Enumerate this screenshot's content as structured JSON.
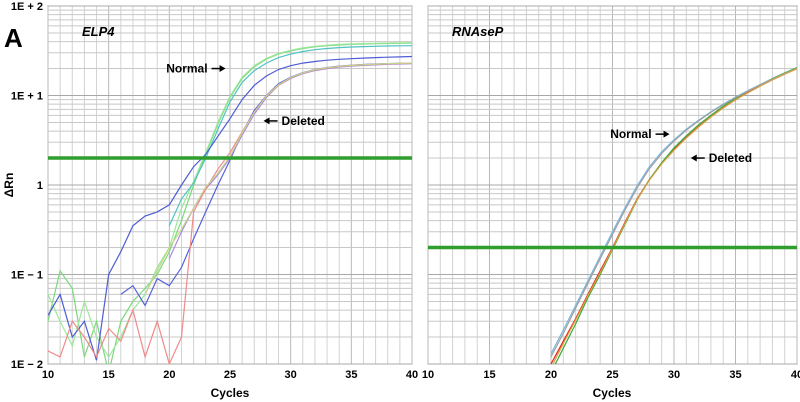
{
  "figure_label": "A",
  "chart_data": [
    {
      "type": "line",
      "title": "ELP4",
      "xlabel": "Cycles",
      "ylabel": "ΔRn",
      "yscale": "log",
      "xlim": [
        10,
        40
      ],
      "ylim": [
        0.01,
        100
      ],
      "x_ticks": [
        10,
        15,
        20,
        25,
        30,
        35,
        40
      ],
      "y_ticks": [
        {
          "value": 0.01,
          "label": "1E − 2"
        },
        {
          "value": 0.1,
          "label": "1E − 1"
        },
        {
          "value": 1,
          "label": "1"
        },
        {
          "value": 10,
          "label": "1E + 1"
        },
        {
          "value": 100,
          "label": "1E + 2"
        }
      ],
      "grid": true,
      "threshold": 2.0,
      "threshold_color": "#2e9e2e",
      "annotations": [
        {
          "text": "Normal",
          "x": 24.8,
          "y": 20
        },
        {
          "text": "Deleted",
          "x": 27.6,
          "y": 5.2
        }
      ],
      "series": [
        {
          "color": "#7bd87b",
          "x": [
            10,
            11,
            12,
            13,
            14,
            15,
            16,
            17,
            18,
            19,
            20,
            21,
            22,
            23,
            24,
            25,
            26,
            27,
            28,
            29,
            30,
            31,
            32,
            33,
            34,
            35,
            36,
            37,
            38,
            39,
            40
          ],
          "y": [
            0.03,
            0.11,
            0.07,
            0.012,
            0.03,
            0.008,
            0.03,
            0.05,
            0.07,
            0.1,
            0.18,
            0.4,
            1.0,
            2.2,
            4.8,
            9.5,
            15.5,
            21,
            25.5,
            29,
            31.5,
            33.5,
            35,
            36,
            36.7,
            37.2,
            37.6,
            37.9,
            38.1,
            38.3,
            38.5
          ]
        },
        {
          "color": "#9be89b",
          "x": [
            10,
            11,
            12,
            13,
            14,
            15,
            16,
            17,
            18,
            19,
            20,
            21,
            22,
            23,
            24,
            25,
            26,
            27,
            28,
            29,
            30,
            31,
            32,
            33,
            34,
            35,
            36,
            37,
            38,
            39,
            40
          ],
          "y": [
            0.06,
            0.03,
            0.016,
            0.05,
            0.02,
            0.012,
            0.02,
            0.04,
            0.06,
            0.12,
            0.2,
            0.55,
            1.1,
            2.3,
            5.0,
            9.8,
            16,
            21.5,
            26,
            29.5,
            32,
            34,
            35.5,
            36.5,
            37.2,
            37.6,
            38,
            38.3,
            38.5,
            38.7,
            38.9
          ]
        },
        {
          "color": "#4fc2c2",
          "x": [
            20,
            21,
            22,
            23,
            24,
            25,
            26,
            27,
            28,
            29,
            30,
            31,
            32,
            33,
            34,
            35,
            36,
            37,
            38,
            39,
            40
          ],
          "y": [
            0.35,
            0.7,
            1.05,
            2.0,
            4.2,
            8.5,
            14,
            19,
            23,
            26.5,
            29,
            31,
            32.5,
            33.5,
            34.3,
            34.8,
            35.2,
            35.5,
            35.7,
            35.9,
            36.0
          ]
        },
        {
          "color": "#4e5cd6",
          "x": [
            10,
            11,
            12,
            13,
            14,
            15,
            16,
            17,
            18,
            19,
            20,
            21,
            22,
            23,
            24,
            25,
            26,
            27,
            28,
            29,
            30,
            31,
            32,
            33,
            34,
            35,
            36,
            37,
            38,
            39,
            40
          ],
          "y": [
            0.035,
            0.06,
            0.02,
            0.03,
            0.011,
            0.1,
            0.18,
            0.35,
            0.45,
            0.5,
            0.6,
            1.0,
            1.6,
            2.2,
            3.5,
            5.5,
            9.0,
            13,
            16.5,
            19.5,
            21.5,
            23,
            24,
            24.8,
            25.4,
            25.8,
            26.2,
            26.5,
            26.8,
            27.0,
            27.3
          ]
        },
        {
          "color": "#5661d9",
          "x": [
            16,
            17,
            18,
            19,
            20,
            21,
            22,
            23,
            24,
            25,
            26,
            27,
            28,
            29,
            30,
            31,
            32,
            33,
            34,
            35,
            36,
            37,
            38,
            39,
            40
          ],
          "y": [
            0.06,
            0.075,
            0.045,
            0.09,
            0.075,
            0.12,
            0.25,
            0.5,
            1.0,
            1.9,
            3.8,
            6.8,
            10,
            13.5,
            16,
            18,
            19.5,
            20.5,
            21.3,
            21.8,
            22.2,
            22.5,
            22.7,
            22.9,
            23.0
          ]
        },
        {
          "color": "#a88ce0",
          "x": [
            20,
            21,
            22,
            23,
            24,
            25,
            26,
            27,
            28,
            29,
            30,
            31,
            32,
            33,
            34,
            35,
            36,
            37,
            38,
            39,
            40
          ],
          "y": [
            0.15,
            0.3,
            0.55,
            0.9,
            1.3,
            2.0,
            3.6,
            6.2,
            9.5,
            13,
            15.5,
            17.5,
            19,
            20,
            20.8,
            21.3,
            21.7,
            22,
            22.3,
            22.5,
            22.7
          ]
        },
        {
          "color": "#f08a8a",
          "x": [
            10,
            11,
            12,
            13,
            14,
            15,
            16,
            17,
            18,
            19,
            20,
            21,
            22,
            23,
            24,
            25,
            26,
            27,
            28,
            29,
            30,
            31,
            32,
            33,
            34,
            35,
            36,
            37,
            38,
            39,
            40
          ],
          "y": [
            0.014,
            0.012,
            0.03,
            0.02,
            0.012,
            0.025,
            0.018,
            0.04,
            0.012,
            0.03,
            0.01,
            0.02,
            0.5,
            0.9,
            1.5,
            2.3,
            3.9,
            6.5,
            9.8,
            13,
            15.8,
            17.8,
            19.3,
            20.3,
            21.1,
            21.6,
            22,
            22.3,
            22.6,
            22.8,
            23
          ]
        },
        {
          "color": "#c8d48a",
          "x": [
            18,
            19,
            20,
            21,
            22,
            23,
            24,
            25,
            26,
            27,
            28,
            29,
            30,
            31,
            32,
            33,
            34,
            35,
            36,
            37,
            38,
            39,
            40
          ],
          "y": [
            0.06,
            0.11,
            0.2,
            0.32,
            0.55,
            0.95,
            1.35,
            2.1,
            3.8,
            6.5,
            9.9,
            13.2,
            15.9,
            17.9,
            19.4,
            20.4,
            21.2,
            21.7,
            22.1,
            22.4,
            22.7,
            22.9,
            23.1
          ]
        }
      ]
    },
    {
      "type": "line",
      "title": "RNAseP",
      "xlabel": "Cycles",
      "yscale": "log",
      "xlim": [
        10,
        40
      ],
      "ylim": [
        0.01,
        100
      ],
      "x_ticks": [
        10,
        15,
        20,
        25,
        30,
        35,
        40
      ],
      "grid": true,
      "threshold": 0.2,
      "threshold_color": "#2e9e2e",
      "annotations": [
        {
          "text": "Normal",
          "x": 29.8,
          "y": 3.7
        },
        {
          "text": "Deleted",
          "x": 31.2,
          "y": 2.0
        }
      ],
      "series": [
        {
          "color": "#e02020",
          "x": [
            20,
            21,
            22,
            23,
            24,
            25,
            26,
            27,
            28,
            29,
            30,
            31,
            32,
            33,
            34,
            35,
            36,
            37,
            38,
            39,
            40
          ],
          "y": [
            0.01,
            0.018,
            0.032,
            0.06,
            0.11,
            0.2,
            0.38,
            0.7,
            1.15,
            1.75,
            2.5,
            3.4,
            4.5,
            5.8,
            7.3,
            9.0,
            10.8,
            12.8,
            15,
            17.4,
            20
          ]
        },
        {
          "color": "#3aaa3a",
          "x": [
            20,
            21,
            22,
            23,
            24,
            25,
            26,
            27,
            28,
            29,
            30,
            31,
            32,
            33,
            34,
            35,
            36,
            37,
            38,
            39,
            40
          ],
          "y": [
            0.008,
            0.015,
            0.028,
            0.055,
            0.1,
            0.19,
            0.36,
            0.68,
            1.15,
            1.78,
            2.6,
            3.55,
            4.7,
            6.0,
            7.6,
            9.3,
            11.2,
            13.2,
            15.5,
            17.9,
            20.5
          ]
        },
        {
          "color": "#7ab8e0",
          "x": [
            20,
            21,
            22,
            23,
            24,
            25,
            26,
            27,
            28,
            29,
            30,
            31,
            32,
            33,
            34,
            35,
            36,
            37,
            38,
            39,
            40
          ],
          "y": [
            0.013,
            0.024,
            0.045,
            0.085,
            0.16,
            0.3,
            0.55,
            0.98,
            1.6,
            2.35,
            3.2,
            4.2,
            5.3,
            6.6,
            8.0,
            9.6,
            11.3,
            13.2,
            15.3,
            17.6,
            20
          ]
        },
        {
          "color": "#a0a0a0",
          "x": [
            20,
            21,
            22,
            23,
            24,
            25,
            26,
            27,
            28,
            29,
            30,
            31,
            32,
            33,
            34,
            35,
            36,
            37,
            38,
            39,
            40
          ],
          "y": [
            0.012,
            0.022,
            0.042,
            0.08,
            0.15,
            0.28,
            0.52,
            0.93,
            1.52,
            2.25,
            3.1,
            4.1,
            5.2,
            6.5,
            7.9,
            9.5,
            11.2,
            13.1,
            15.2,
            17.5,
            20.2
          ]
        },
        {
          "color": "#d9a040",
          "x": [
            20,
            21,
            22,
            23,
            24,
            25,
            26,
            27,
            28,
            29,
            30,
            31,
            32,
            33,
            34,
            35,
            36,
            37,
            38,
            39,
            40
          ],
          "y": [
            0.009,
            0.017,
            0.031,
            0.058,
            0.105,
            0.195,
            0.37,
            0.69,
            1.13,
            1.72,
            2.45,
            3.35,
            4.45,
            5.75,
            7.25,
            8.95,
            10.7,
            12.7,
            14.9,
            17.3,
            19.9
          ]
        }
      ]
    }
  ]
}
